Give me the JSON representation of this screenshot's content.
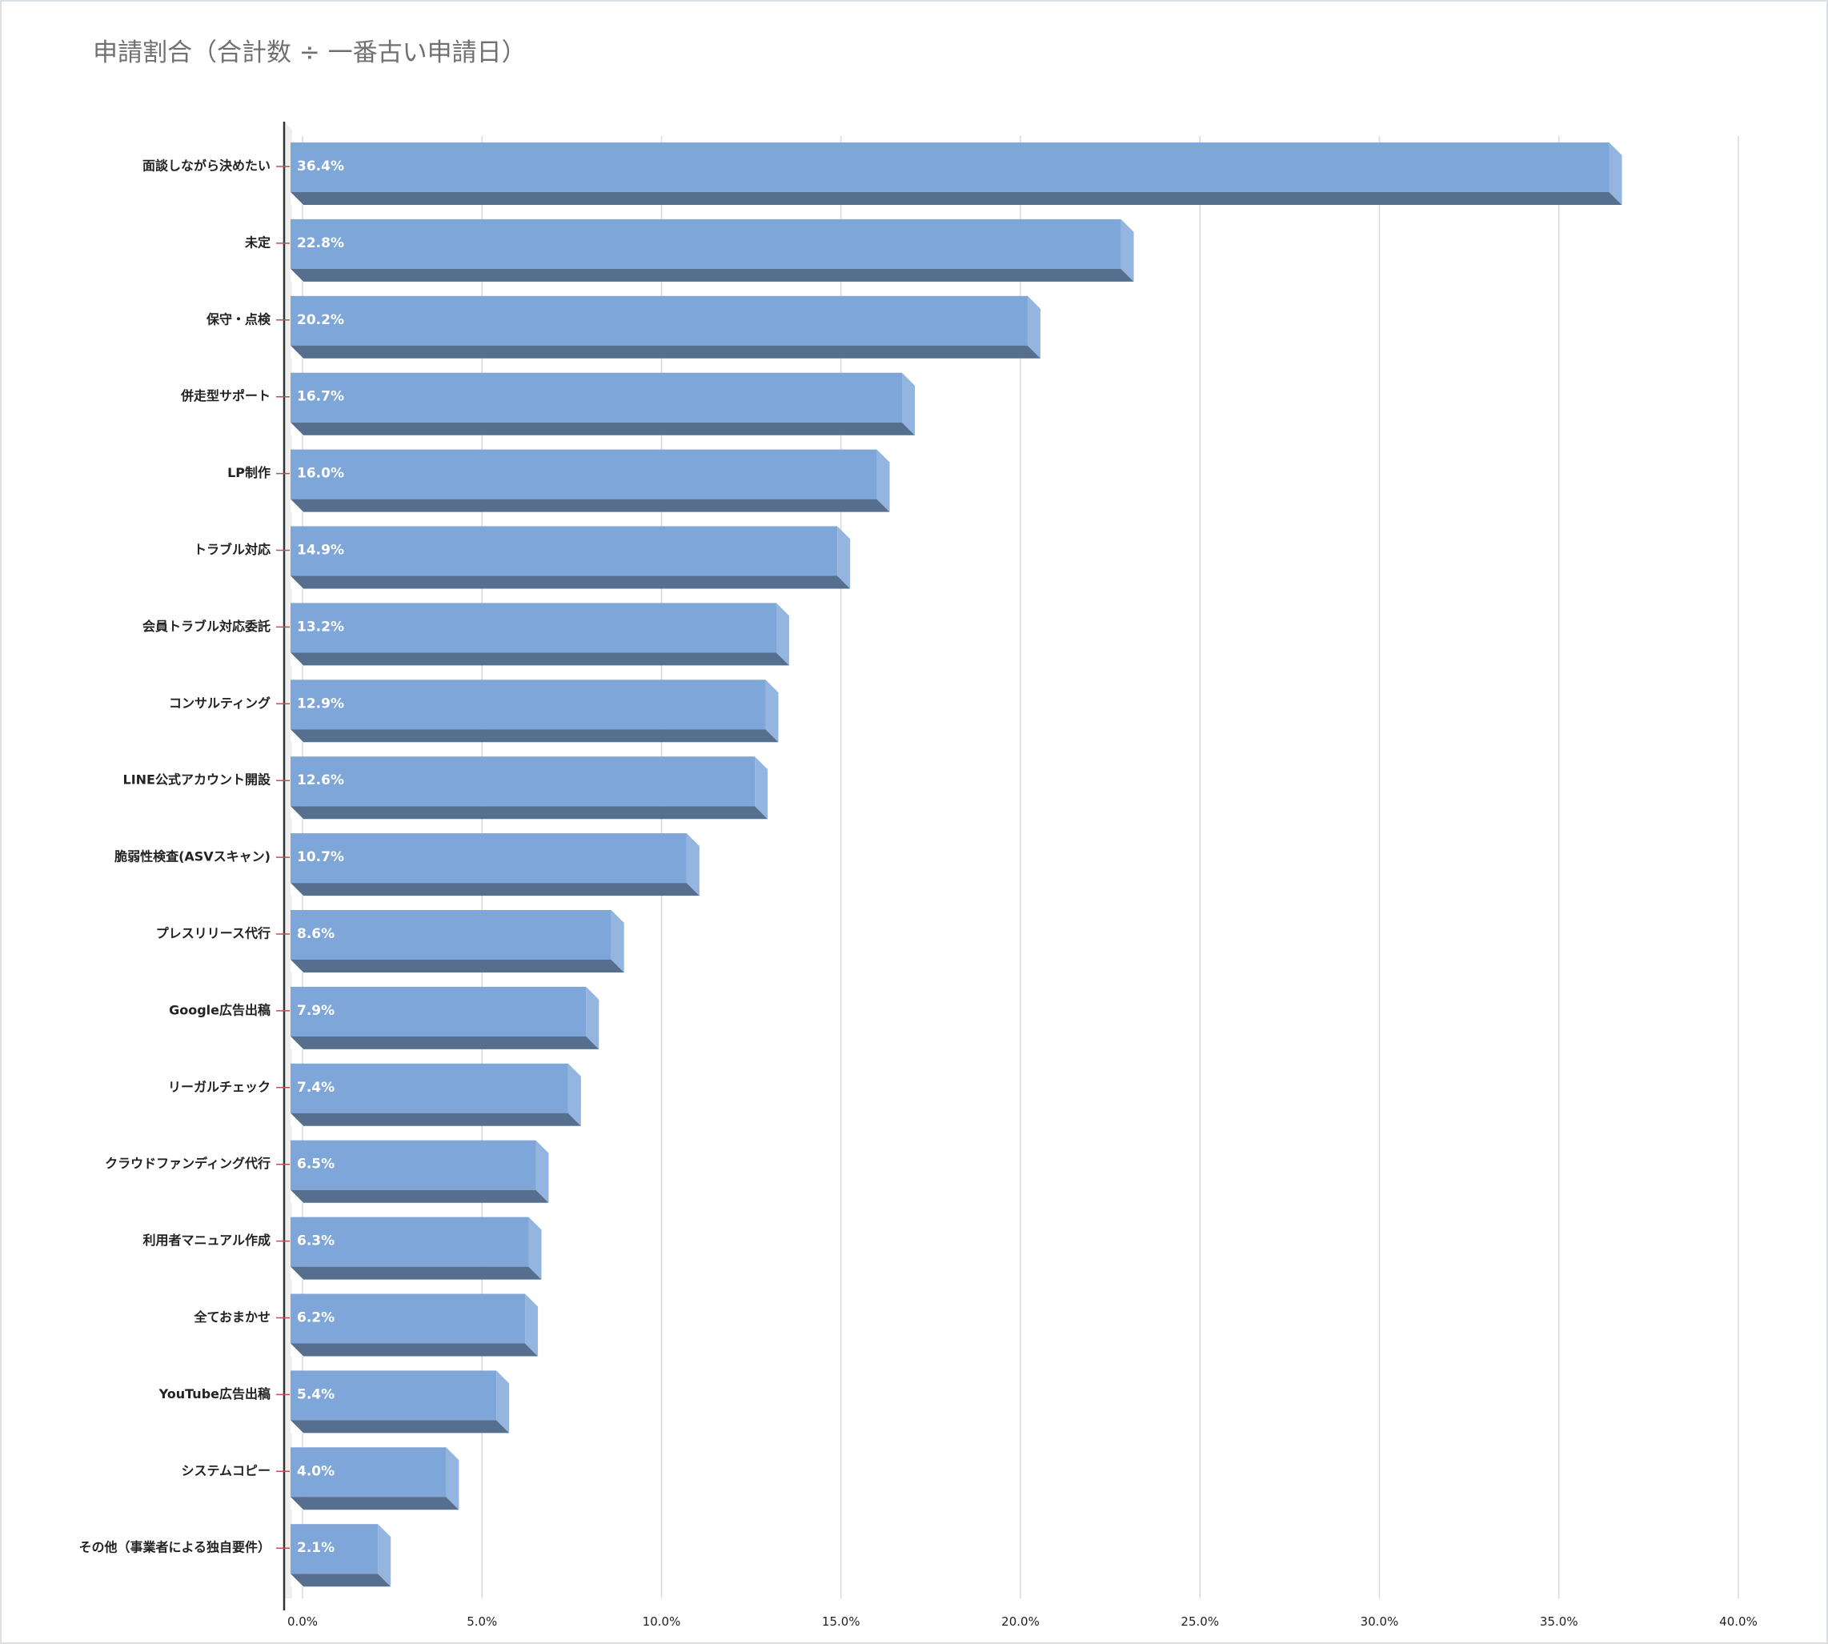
{
  "chart_data": {
    "type": "bar",
    "orientation": "horizontal",
    "style": "3d",
    "title": "申請割合（合計数 ÷ 一番古い申請日）",
    "xlabel": "",
    "ylabel": "",
    "xlim": [
      0,
      40
    ],
    "x_ticks": [
      "0.0%",
      "5.0%",
      "10.0%",
      "15.0%",
      "20.0%",
      "25.0%",
      "30.0%",
      "35.0%",
      "40.0%"
    ],
    "grid": true,
    "legend": "none",
    "colors": {
      "bar_front": "#7ea6d8",
      "bar_side": "#93b5df",
      "bar_bottom": "#566f8e",
      "bar_top": "#a9c4e6",
      "gridline": "#d9d9d9",
      "axis": "#333333",
      "wall": "#efefef",
      "tick_mark": "#c0504d"
    },
    "categories": [
      "面談しながら決めたい",
      "未定",
      "保守・点検",
      "併走型サポート",
      "LP制作",
      "トラブル対応",
      "会員トラブル対応委託",
      "コンサルティング",
      "LINE公式アカウント開設",
      "脆弱性検査(ASVスキャン)",
      "プレスリリース代行",
      "Google広告出稿",
      "リーガルチェック",
      "クラウドファンディング代行",
      "利用者マニュアル作成",
      "全ておまかせ",
      "YouTube広告出稿",
      "システムコピー",
      "その他（事業者による独自要件）"
    ],
    "values": [
      36.4,
      22.8,
      20.2,
      16.7,
      16.0,
      14.9,
      13.2,
      12.9,
      12.6,
      10.7,
      8.6,
      7.9,
      7.4,
      6.5,
      6.3,
      6.2,
      5.4,
      4.0,
      2.1
    ],
    "value_labels": [
      "36.4%",
      "22.8%",
      "20.2%",
      "16.7%",
      "16.0%",
      "14.9%",
      "13.2%",
      "12.9%",
      "12.6%",
      "10.7%",
      "8.6%",
      "7.9%",
      "7.4%",
      "6.5%",
      "6.3%",
      "6.2%",
      "5.4%",
      "4.0%",
      "2.1%"
    ]
  }
}
